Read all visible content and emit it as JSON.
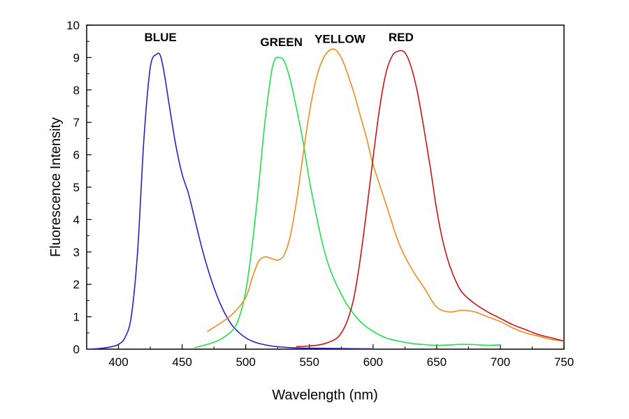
{
  "chart_data": {
    "type": "line",
    "title": "",
    "xlabel": "Wavelength (nm)",
    "ylabel": "Fluorescence Intensity",
    "xlim": [
      375,
      750
    ],
    "ylim": [
      0,
      10
    ],
    "x_ticks": [
      "400",
      "450",
      "500",
      "550",
      "600",
      "650",
      "700",
      "750"
    ],
    "y_ticks": [
      "0",
      "1",
      "2",
      "3",
      "4",
      "5",
      "6",
      "7",
      "8",
      "9",
      "10"
    ],
    "grid": false,
    "legend": "none (series labeled above peaks)",
    "series": [
      {
        "name": "BLUE",
        "color": "#2a1fc2",
        "x": [
          375,
          385,
          395,
          400,
          405,
          410,
          415,
          420,
          425,
          430,
          433,
          436,
          440,
          445,
          450,
          455,
          460,
          465,
          470,
          475,
          480,
          485,
          490,
          495,
          500,
          505,
          510,
          520,
          530,
          540,
          550,
          575,
          600
        ],
        "y": [
          0.0,
          0.02,
          0.08,
          0.15,
          0.35,
          1.0,
          3.0,
          6.5,
          8.7,
          9.1,
          9.05,
          8.5,
          7.5,
          6.3,
          5.4,
          4.8,
          4.0,
          3.2,
          2.5,
          1.9,
          1.4,
          1.0,
          0.7,
          0.5,
          0.35,
          0.25,
          0.18,
          0.1,
          0.06,
          0.04,
          0.03,
          0.02,
          0.01
        ]
      },
      {
        "name": "GREEN",
        "color": "#1ee04a",
        "x": [
          460,
          470,
          480,
          490,
          495,
          500,
          505,
          510,
          515,
          520,
          523,
          526,
          530,
          535,
          540,
          545,
          550,
          555,
          560,
          565,
          570,
          575,
          580,
          590,
          600,
          610,
          620,
          630,
          640,
          650,
          660,
          670,
          680,
          690,
          700
        ],
        "y": [
          0.05,
          0.15,
          0.3,
          0.6,
          1.0,
          1.8,
          3.2,
          5.0,
          7.0,
          8.5,
          8.95,
          9.0,
          8.9,
          8.3,
          7.4,
          6.4,
          5.2,
          4.2,
          3.3,
          2.6,
          2.1,
          1.7,
          1.35,
          0.85,
          0.55,
          0.35,
          0.25,
          0.18,
          0.14,
          0.12,
          0.13,
          0.15,
          0.14,
          0.12,
          0.13
        ]
      },
      {
        "name": "YELLOW",
        "color": "#f08a1e",
        "x": [
          470,
          480,
          490,
          500,
          505,
          510,
          515,
          520,
          525,
          530,
          535,
          540,
          545,
          550,
          555,
          560,
          565,
          570,
          575,
          580,
          585,
          590,
          595,
          600,
          610,
          620,
          630,
          640,
          650,
          660,
          670,
          680,
          690,
          700,
          710,
          720,
          730,
          740,
          750
        ],
        "y": [
          0.55,
          0.8,
          1.1,
          1.6,
          2.2,
          2.7,
          2.85,
          2.8,
          2.75,
          2.9,
          3.5,
          4.6,
          6.0,
          7.3,
          8.3,
          8.9,
          9.2,
          9.25,
          9.0,
          8.5,
          7.9,
          7.2,
          6.5,
          5.7,
          4.5,
          3.3,
          2.5,
          1.9,
          1.3,
          1.15,
          1.2,
          1.15,
          1.0,
          0.85,
          0.65,
          0.5,
          0.4,
          0.3,
          0.25
        ]
      },
      {
        "name": "RED",
        "color": "#c81414",
        "x": [
          540,
          550,
          560,
          570,
          575,
          580,
          585,
          590,
          595,
          600,
          605,
          610,
          615,
          620,
          625,
          630,
          635,
          640,
          645,
          650,
          655,
          660,
          665,
          670,
          680,
          690,
          700,
          710,
          720,
          730,
          740,
          750
        ],
        "y": [
          0.08,
          0.1,
          0.15,
          0.3,
          0.5,
          0.9,
          1.6,
          2.8,
          4.3,
          5.9,
          7.4,
          8.5,
          9.05,
          9.2,
          9.15,
          8.7,
          7.9,
          6.8,
          5.6,
          4.3,
          3.3,
          2.6,
          2.1,
          1.75,
          1.4,
          1.15,
          0.95,
          0.75,
          0.6,
          0.45,
          0.35,
          0.25
        ]
      }
    ],
    "annotations": [
      {
        "text": "BLUE",
        "x": 433,
        "y": 9.5
      },
      {
        "text": "GREEN",
        "x": 528,
        "y": 9.35
      },
      {
        "text": "YELLOW",
        "x": 574,
        "y": 9.45
      },
      {
        "text": "RED",
        "x": 622,
        "y": 9.5
      }
    ]
  }
}
